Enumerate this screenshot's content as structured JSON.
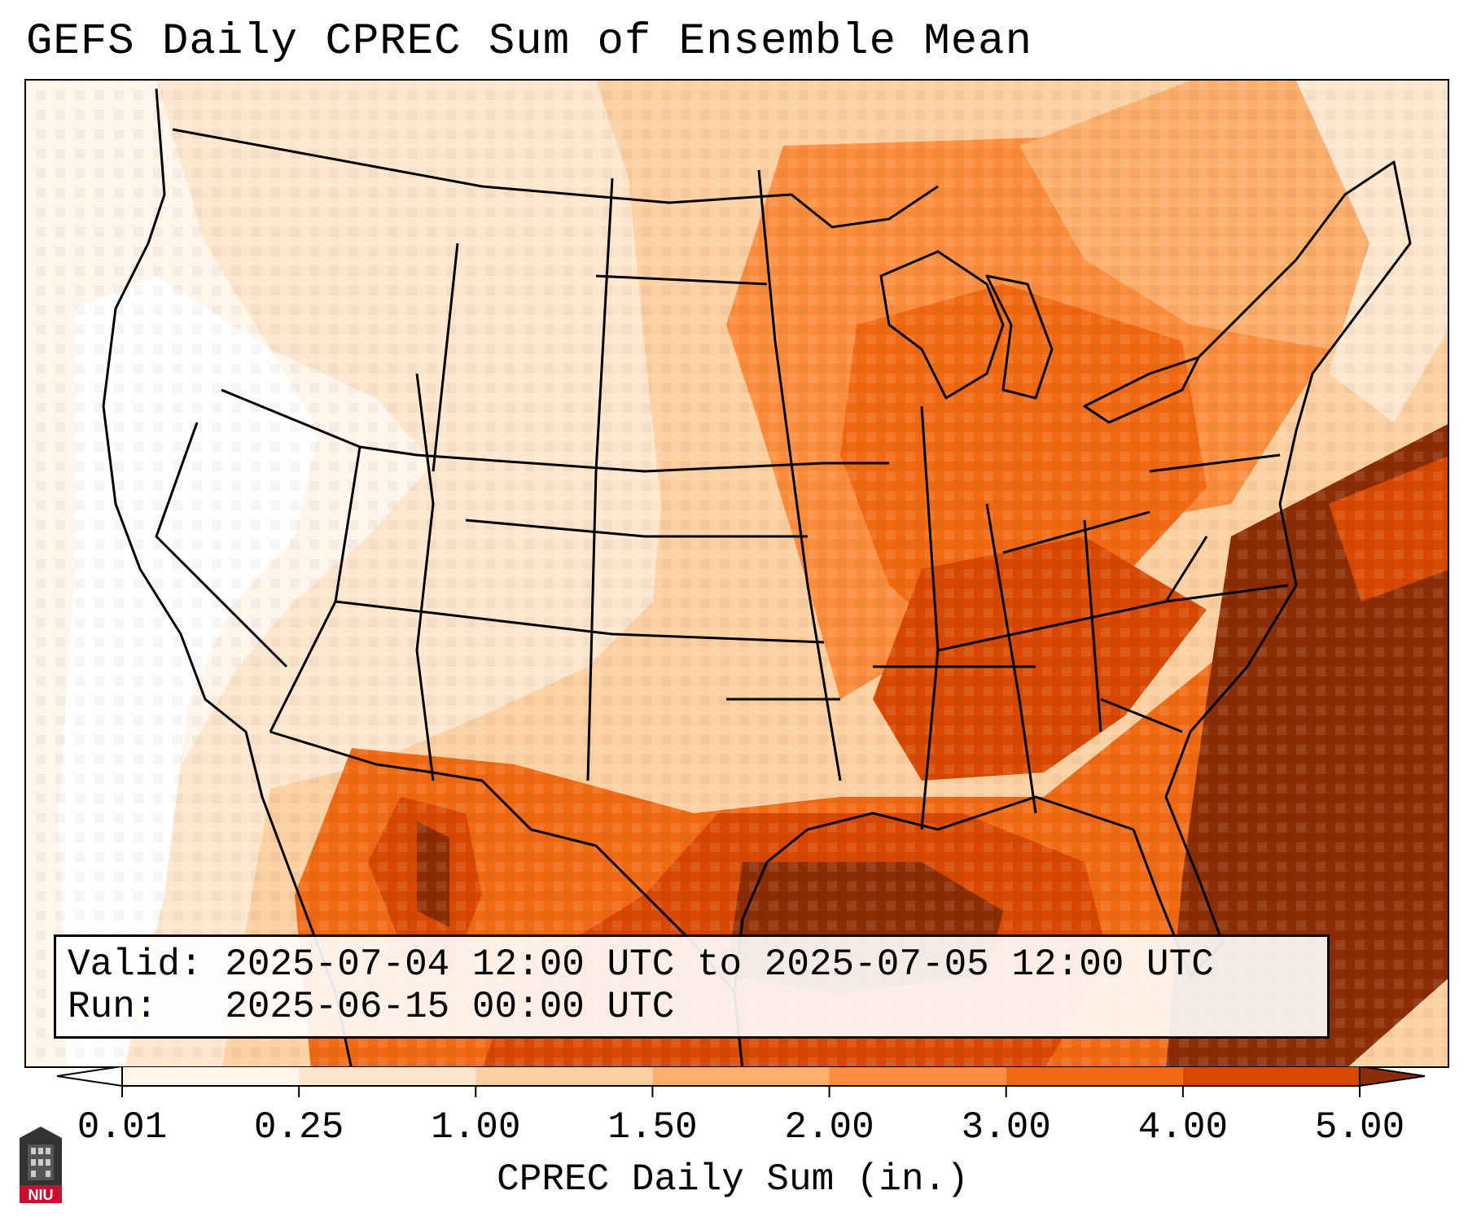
{
  "title": "GEFS Daily CPREC Sum of Ensemble Mean",
  "info": {
    "valid": "Valid: 2025-07-04 12:00 UTC to 2025-07-05 12:00 UTC",
    "run": "Run:   2025-06-15 00:00 UTC"
  },
  "colorbar": {
    "label": "CPREC Daily Sum (in.)",
    "ticks": [
      "0.01",
      "0.25",
      "1.00",
      "1.50",
      "2.00",
      "3.00",
      "4.00",
      "5.00"
    ],
    "colors": [
      "#fff5eb",
      "#fee6ce",
      "#fdd0a2",
      "#fdae6b",
      "#fd8d3c",
      "#f16913",
      "#d94801",
      "#8c2d04"
    ],
    "under_color": "#ffffff",
    "over_color": "#8c2d04"
  },
  "logo": {
    "text": "NIU"
  }
}
